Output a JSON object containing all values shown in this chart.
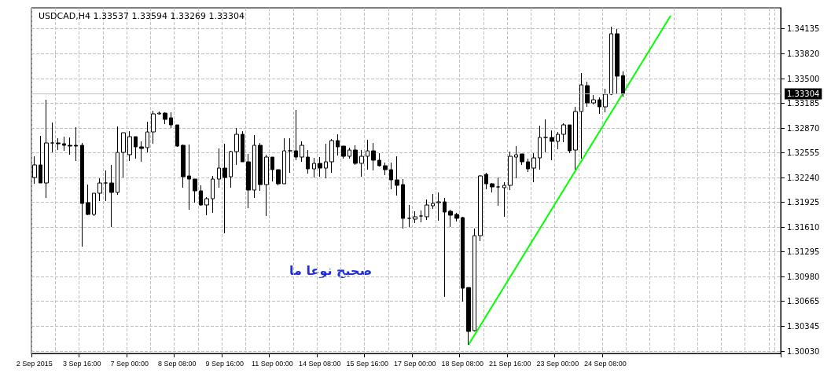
{
  "chart_data": {
    "type": "candlestick",
    "title": "USDCAD,H4 1.33537 1.33594 1.33269 1.33304",
    "categories": [
      "2 Sep 2015",
      null,
      null,
      null,
      null,
      null,
      null,
      null,
      "3 Sep 16:00",
      null,
      null,
      null,
      null,
      null,
      null,
      null,
      "7 Sep 00:00",
      null,
      null,
      null,
      null,
      null,
      null,
      null,
      "8 Sep 08:00",
      null,
      null,
      null,
      null,
      null,
      null,
      null,
      "9 Sep 16:00",
      null,
      null,
      null,
      null,
      null,
      null,
      null,
      "11 Sep 00:00",
      null,
      null,
      null,
      null,
      null,
      null,
      null,
      "14 Sep 08:00",
      null,
      null,
      null,
      null,
      null,
      null,
      null,
      "15 Sep 16:00",
      null,
      null,
      null,
      null,
      null,
      null,
      null,
      "17 Sep 00:00",
      null,
      null,
      null,
      null,
      null,
      null,
      null,
      "18 Sep 08:00",
      null,
      null,
      null,
      null,
      null,
      null,
      null,
      "21 Sep 16:00",
      null,
      null,
      null,
      null,
      null,
      null,
      null,
      "23 Sep 00:00",
      null,
      null,
      null,
      null,
      null,
      null,
      null,
      "24 Sep 08:00",
      null,
      null,
      null,
      null,
      null,
      null,
      null,
      null,
      null,
      null,
      null,
      null,
      null,
      null,
      null,
      null,
      null,
      null,
      null,
      null,
      null,
      null,
      null,
      null,
      null,
      null,
      null,
      null,
      null
    ],
    "series": [
      {
        "color": "#000000",
        "ohlc": [
          [
            1.3224,
            1.3251,
            1.3216,
            1.324
          ],
          [
            1.324,
            1.3277,
            1.3217,
            1.3217
          ],
          [
            1.3217,
            1.3323,
            1.3198,
            1.3268
          ],
          [
            1.3268,
            1.3294,
            1.3256,
            1.3268
          ],
          [
            1.3268,
            1.3274,
            1.3259,
            1.3267
          ],
          [
            1.3267,
            1.3276,
            1.3258,
            1.3265
          ],
          [
            1.3265,
            1.3275,
            1.3253,
            1.3264
          ],
          [
            1.3265,
            1.3288,
            1.3245,
            1.3264
          ],
          [
            1.3265,
            1.3268,
            1.3136,
            1.3191
          ],
          [
            1.3192,
            1.3215,
            1.3176,
            1.3177
          ],
          [
            1.3177,
            1.3204,
            1.3175,
            1.3204
          ],
          [
            1.3204,
            1.3223,
            1.3194,
            1.3217
          ],
          [
            1.3217,
            1.3233,
            1.3194,
            1.3217
          ],
          [
            1.3217,
            1.324,
            1.3161,
            1.3205
          ],
          [
            1.3205,
            1.3289,
            1.3202,
            1.3256
          ],
          [
            1.3256,
            1.3281,
            1.3224,
            1.3281
          ],
          [
            1.3253,
            1.3283,
            1.3245,
            1.3276
          ],
          [
            1.3276,
            1.3276,
            1.3248,
            1.3263
          ],
          [
            1.3263,
            1.327,
            1.3244,
            1.3261
          ],
          [
            1.3262,
            1.3295,
            1.3256,
            1.3282
          ],
          [
            1.3282,
            1.3309,
            1.3267,
            1.3305
          ],
          [
            1.3305,
            1.3308,
            1.3304,
            1.3306
          ],
          [
            1.3306,
            1.3307,
            1.3292,
            1.3298
          ],
          [
            1.33,
            1.3307,
            1.3287,
            1.3291
          ],
          [
            1.3291,
            1.3291,
            1.3263,
            1.3264
          ],
          [
            1.3265,
            1.3266,
            1.3211,
            1.3225
          ],
          [
            1.3226,
            1.3266,
            1.3183,
            1.3222
          ],
          [
            1.3222,
            1.3222,
            1.3192,
            1.3207
          ],
          [
            1.3207,
            1.3214,
            1.3188,
            1.3189
          ],
          [
            1.3189,
            1.3199,
            1.3176,
            1.3197
          ],
          [
            1.3197,
            1.3226,
            1.3179,
            1.3222
          ],
          [
            1.3222,
            1.3261,
            1.3211,
            1.3236
          ],
          [
            1.3236,
            1.3267,
            1.3153,
            1.3224
          ],
          [
            1.3225,
            1.3258,
            1.3211,
            1.3257
          ],
          [
            1.3257,
            1.3287,
            1.324,
            1.3279
          ],
          [
            1.3279,
            1.3283,
            1.3244,
            1.3244
          ],
          [
            1.3244,
            1.3254,
            1.3185,
            1.3208
          ],
          [
            1.3208,
            1.3278,
            1.3198,
            1.3265
          ],
          [
            1.3265,
            1.3268,
            1.3207,
            1.3215
          ],
          [
            1.3215,
            1.3253,
            1.3175,
            1.325
          ],
          [
            1.325,
            1.325,
            1.3219,
            1.3234
          ],
          [
            1.3234,
            1.3234,
            1.3214,
            1.3216
          ],
          [
            1.3216,
            1.3274,
            1.3216,
            1.3258
          ],
          [
            1.3258,
            1.3274,
            1.323,
            1.3258
          ],
          [
            1.3258,
            1.331,
            1.3246,
            1.325
          ],
          [
            1.325,
            1.327,
            1.3244,
            1.3265
          ],
          [
            1.325,
            1.3259,
            1.3229,
            1.3235
          ],
          [
            1.3235,
            1.3249,
            1.3224,
            1.3242
          ],
          [
            1.3242,
            1.325,
            1.3225,
            1.3236
          ],
          [
            1.3236,
            1.3267,
            1.3223,
            1.3244
          ],
          [
            1.3244,
            1.3273,
            1.323,
            1.3271
          ],
          [
            1.3271,
            1.3279,
            1.3252,
            1.3263
          ],
          [
            1.3264,
            1.3264,
            1.3248,
            1.3251
          ],
          [
            1.3251,
            1.3262,
            1.3248,
            1.3259
          ],
          [
            1.3259,
            1.3265,
            1.324,
            1.3242
          ],
          [
            1.3242,
            1.3259,
            1.3225,
            1.3251
          ],
          [
            1.3251,
            1.3272,
            1.3234,
            1.3258
          ],
          [
            1.3258,
            1.3268,
            1.3233,
            1.3246
          ],
          [
            1.3246,
            1.3255,
            1.3238,
            1.3239
          ],
          [
            1.3239,
            1.3243,
            1.3227,
            1.3234
          ],
          [
            1.3234,
            1.3243,
            1.3209,
            1.3221
          ],
          [
            1.3221,
            1.3251,
            1.3201,
            1.3214
          ],
          [
            1.3215,
            1.3222,
            1.3159,
            1.3172
          ],
          [
            1.3172,
            1.3189,
            1.3161,
            1.3172
          ],
          [
            1.3171,
            1.3181,
            1.3166,
            1.3174
          ],
          [
            1.3175,
            1.3182,
            1.3167,
            1.3175
          ],
          [
            1.3174,
            1.3196,
            1.317,
            1.3189
          ],
          [
            1.3188,
            1.3203,
            1.3184,
            1.3191
          ],
          [
            1.3192,
            1.3205,
            1.3169,
            1.3193
          ],
          [
            1.3193,
            1.3198,
            1.3072,
            1.318
          ],
          [
            1.3181,
            1.3183,
            1.3161,
            1.3176
          ],
          [
            1.3177,
            1.3179,
            1.3168,
            1.3172
          ],
          [
            1.3173,
            1.3174,
            1.3066,
            1.3083
          ],
          [
            1.3084,
            1.3084,
            1.3011,
            1.3028
          ],
          [
            1.3029,
            1.3159,
            1.3028,
            1.315
          ],
          [
            1.315,
            1.3227,
            1.3143,
            1.3226
          ],
          [
            1.3228,
            1.323,
            1.3209,
            1.3216
          ],
          [
            1.3216,
            1.3217,
            1.3205,
            1.3212
          ],
          [
            1.3212,
            1.3224,
            1.3188,
            1.3212
          ],
          [
            1.3211,
            1.3218,
            1.3174,
            1.3214
          ],
          [
            1.3214,
            1.3257,
            1.3208,
            1.3251
          ],
          [
            1.325,
            1.3264,
            1.3223,
            1.3253
          ],
          [
            1.3254,
            1.3254,
            1.324,
            1.3244
          ],
          [
            1.3244,
            1.3248,
            1.3231,
            1.3235
          ],
          [
            1.3236,
            1.3255,
            1.3218,
            1.3249
          ],
          [
            1.3249,
            1.329,
            1.3234,
            1.3275
          ],
          [
            1.3275,
            1.3298,
            1.3256,
            1.3275
          ],
          [
            1.3275,
            1.3284,
            1.3246,
            1.327
          ],
          [
            1.327,
            1.3282,
            1.326,
            1.3279
          ],
          [
            1.3279,
            1.3293,
            1.3269,
            1.3291
          ],
          [
            1.3291,
            1.3291,
            1.3255,
            1.3258
          ],
          [
            1.3259,
            1.3314,
            1.3234,
            1.3308
          ],
          [
            1.3308,
            1.3357,
            1.3248,
            1.3342
          ],
          [
            1.3341,
            1.3346,
            1.3314,
            1.3319
          ],
          [
            1.3319,
            1.3329,
            1.3317,
            1.3323
          ],
          [
            1.3323,
            1.3326,
            1.3305,
            1.3314
          ],
          [
            1.3314,
            1.3337,
            1.3307,
            1.333
          ],
          [
            1.333,
            1.3416,
            1.3329,
            1.3407
          ],
          [
            1.3407,
            1.3413,
            1.333,
            1.3353
          ],
          [
            1.33537,
            1.33594,
            1.33269,
            1.33304
          ],
          null,
          null,
          null,
          null,
          null,
          null,
          null,
          null,
          null,
          null,
          null,
          null,
          null,
          null,
          null,
          null,
          null,
          null,
          null,
          null,
          null,
          null,
          null,
          null,
          null,
          null
        ]
      },
      {
        "type": "line",
        "color": "#00ff00",
        "values": [
          null,
          null,
          null,
          null,
          null,
          null,
          null,
          null,
          null,
          null,
          null,
          null,
          null,
          null,
          null,
          null,
          null,
          null,
          null,
          null,
          null,
          null,
          null,
          null,
          null,
          null,
          null,
          null,
          null,
          null,
          null,
          null,
          null,
          null,
          null,
          null,
          null,
          null,
          null,
          null,
          null,
          null,
          null,
          null,
          null,
          null,
          null,
          null,
          null,
          null,
          null,
          null,
          null,
          null,
          null,
          null,
          null,
          null,
          null,
          null,
          null,
          null,
          null,
          null,
          null,
          null,
          null,
          null,
          null,
          null,
          null,
          null,
          null,
          1.3011,
          null,
          null,
          null,
          null,
          null,
          null,
          null,
          null,
          null,
          null,
          null,
          null,
          null,
          null,
          null,
          null,
          null,
          null,
          null,
          null,
          null,
          null,
          null,
          null,
          null,
          null,
          null,
          null,
          null,
          null,
          null,
          null,
          null,
          1.343,
          null,
          null,
          null,
          null,
          null,
          null,
          null,
          null,
          null,
          null,
          null,
          null,
          null,
          null,
          null,
          null,
          null,
          null
        ]
      }
    ],
    "ylim": [
      1.3,
      1.344
    ],
    "yticks": [
      {
        "value": 1.3003,
        "label": "1.30030"
      },
      1.30345,
      1.30665,
      {
        "value": 1.3098,
        "label": "1.30980"
      },
      1.31295,
      {
        "value": 1.3161,
        "label": "1.31610"
      },
      1.31925,
      {
        "value": 1.3224,
        "label": "1.32240"
      },
      1.32555,
      {
        "value": 1.3287,
        "label": "1.32870"
      },
      1.33185,
      {
        "value": 1.335,
        "label": "1.33500"
      },
      {
        "value": 1.3382,
        "label": "1.33820"
      },
      1.34135
    ],
    "ref_lines": [
      {
        "axis": "y",
        "value": 1.33304,
        "label": "1.33304",
        "color": "#c0c0c0"
      }
    ],
    "annotations": [
      "صحيح نوعا ما"
    ],
    "grid": true
  }
}
